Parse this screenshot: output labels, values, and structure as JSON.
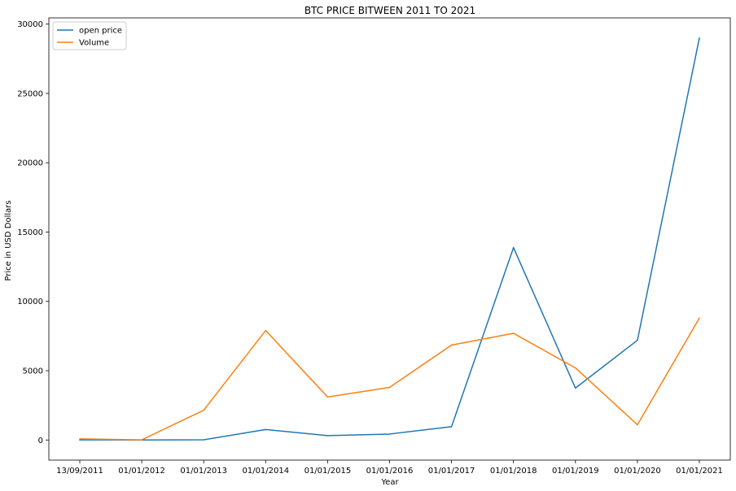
{
  "chart_data": {
    "type": "line",
    "title": "BTC PRICE BITWEEN 2011 TO 2021",
    "xlabel": "Year",
    "ylabel": "Price in USD Dollars",
    "categories": [
      "13/09/2011",
      "01/01/2012",
      "01/01/2013",
      "01/01/2014",
      "01/01/2015",
      "01/01/2016",
      "01/01/2017",
      "01/01/2018",
      "01/01/2019",
      "01/01/2020",
      "01/01/2021"
    ],
    "series": [
      {
        "name": "open price",
        "color": "#1f77b4",
        "values": [
          6,
          5,
          13,
          754,
          318,
          430,
          964,
          13880,
          3746,
          7194,
          28994
        ]
      },
      {
        "name": "Volume",
        "color": "#ff7f0e",
        "values": [
          80,
          10,
          2150,
          7900,
          3100,
          3800,
          6850,
          7700,
          5200,
          1100,
          8800
        ]
      }
    ],
    "yticks": [
      0,
      5000,
      10000,
      15000,
      20000,
      25000,
      30000
    ],
    "ylim": [
      -1450,
      30450
    ],
    "grid": false,
    "legend_position": "upper-left"
  }
}
